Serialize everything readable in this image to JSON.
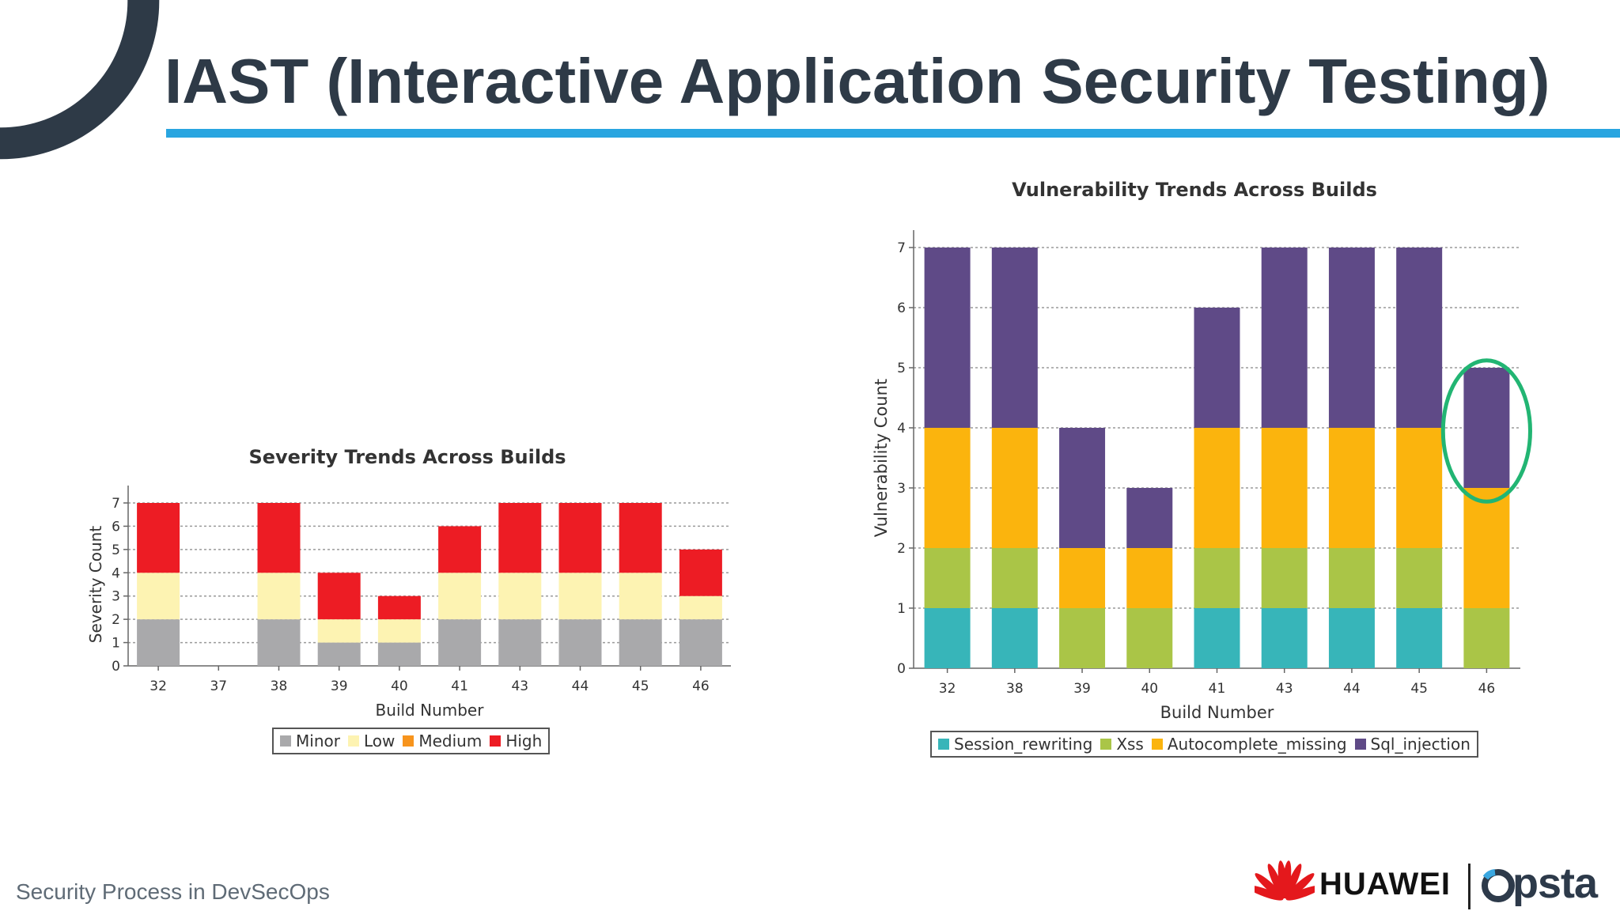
{
  "slide": {
    "title": "IAST (Interactive Application Security Testing)",
    "footer": "Security Process in DevSecOps",
    "logos": {
      "huawei": "HUAWEI",
      "opsta": "psta"
    },
    "colors": {
      "title": "#2e3a47",
      "underline": "#29a5e0",
      "arc": "#2e3a47",
      "highlight_circle": "#22b573"
    }
  },
  "chart_data": [
    {
      "type": "bar",
      "stacked": true,
      "title": "Severity Trends Across Builds",
      "xlabel": "Build Number",
      "ylabel": "Severity Count",
      "categories": [
        "32",
        "37",
        "38",
        "39",
        "40",
        "41",
        "43",
        "44",
        "45",
        "46"
      ],
      "ylim": [
        0,
        7
      ],
      "yticks": [
        0,
        1,
        2,
        3,
        4,
        5,
        6,
        7
      ],
      "grid": true,
      "legend": "bottom",
      "series": [
        {
          "name": "Minor",
          "color": "#a9a9ab",
          "values": [
            2,
            0,
            2,
            1,
            1,
            2,
            2,
            2,
            2,
            2
          ]
        },
        {
          "name": "Low",
          "color": "#fdf3b2",
          "values": [
            2,
            0,
            2,
            1,
            1,
            2,
            2,
            2,
            2,
            1
          ]
        },
        {
          "name": "Medium",
          "color": "#f7941d",
          "values": [
            0,
            0,
            0,
            0,
            0,
            0,
            0,
            0,
            0,
            0
          ]
        },
        {
          "name": "High",
          "color": "#ed1c24",
          "values": [
            3,
            0,
            3,
            2,
            1,
            2,
            3,
            3,
            3,
            2
          ]
        }
      ]
    },
    {
      "type": "bar",
      "stacked": true,
      "title": "Vulnerability Trends Across Builds",
      "xlabel": "Build Number",
      "ylabel": "Vulnerability Count",
      "categories": [
        "32",
        "38",
        "39",
        "40",
        "41",
        "43",
        "44",
        "45",
        "46"
      ],
      "ylim": [
        0,
        7
      ],
      "yticks": [
        0,
        1,
        2,
        3,
        4,
        5,
        6,
        7
      ],
      "grid": true,
      "legend": "bottom",
      "highlight": "46",
      "series": [
        {
          "name": "Session_rewriting",
          "color": "#37b5b9",
          "values": [
            1,
            1,
            0,
            0,
            1,
            1,
            1,
            1,
            0
          ]
        },
        {
          "name": "Xss",
          "color": "#aac547",
          "values": [
            1,
            1,
            1,
            1,
            1,
            1,
            1,
            1,
            1
          ]
        },
        {
          "name": "Autocomplete_missing",
          "color": "#fbb40d",
          "values": [
            2,
            2,
            1,
            1,
            2,
            2,
            2,
            2,
            2
          ]
        },
        {
          "name": "Sql_injection",
          "color": "#5f4a87",
          "values": [
            3,
            3,
            2,
            1,
            2,
            3,
            3,
            3,
            2
          ]
        }
      ]
    }
  ]
}
